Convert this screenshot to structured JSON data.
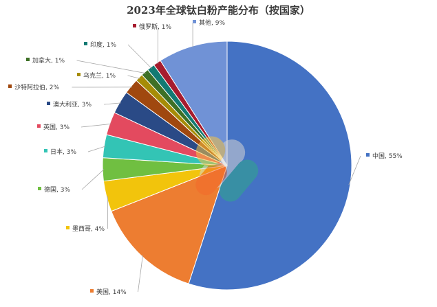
{
  "chart_data": {
    "type": "pie",
    "title": "2023年全球钛白粉产能分布（按国家）",
    "slices": [
      {
        "label": "中国",
        "value": 55,
        "value_label": "55%",
        "color": "#4472C4"
      },
      {
        "label": "美国",
        "value": 14,
        "value_label": "14%",
        "color": "#ED7D31"
      },
      {
        "label": "墨西哥",
        "value": 4,
        "value_label": "4%",
        "color": "#F2C40C"
      },
      {
        "label": "德国",
        "value": 3,
        "value_label": "3%",
        "color": "#70BF41"
      },
      {
        "label": "日本",
        "value": 3,
        "value_label": "3%",
        "color": "#33C4B5"
      },
      {
        "label": "英国",
        "value": 3,
        "value_label": "3%",
        "color": "#E34A5F"
      },
      {
        "label": "澳大利亚",
        "value": 3,
        "value_label": "3%",
        "color": "#2A4A86"
      },
      {
        "label": "沙特阿拉伯",
        "value": 2,
        "value_label": "2%",
        "color": "#A0480F"
      },
      {
        "label": "乌克兰",
        "value": 1,
        "value_label": "1%",
        "color": "#A68C07"
      },
      {
        "label": "加拿大",
        "value": 1,
        "value_label": "1%",
        "color": "#3E7026"
      },
      {
        "label": "印度",
        "value": 1,
        "value_label": "1%",
        "color": "#137A73"
      },
      {
        "label": "俄罗斯",
        "value": 1,
        "value_label": "1%",
        "color": "#A61C2E"
      },
      {
        "label": "其他",
        "value": 9,
        "value_label": "9%",
        "color": "#7092D6"
      }
    ],
    "legend": "none",
    "data_labels": "outside with leader lines"
  }
}
